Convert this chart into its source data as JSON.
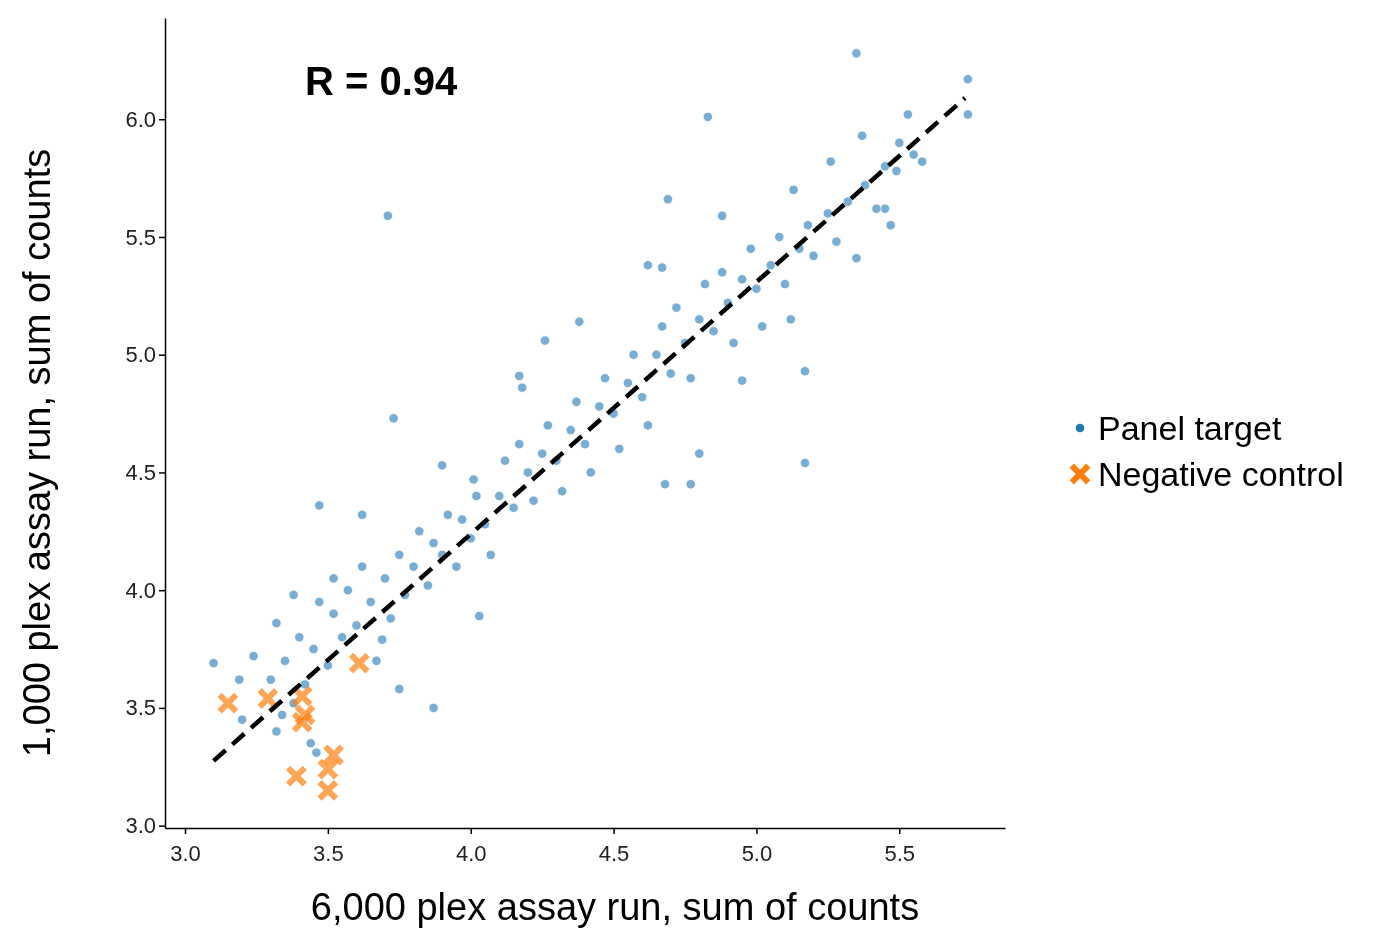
{
  "chart_data": {
    "type": "scatter",
    "xlabel": "6,000 plex assay run, sum of counts",
    "ylabel": "1,000 plex assay run, sum of counts",
    "annotations": [
      "R = 0.94"
    ],
    "xlim": [
      2.93,
      5.87
    ],
    "ylim": [
      2.99,
      6.43
    ],
    "xticks": [
      {
        "value": 3,
        "label": "3.0"
      },
      {
        "value": 3.5,
        "label": "3.5"
      },
      {
        "value": 4,
        "label": "4.0"
      },
      {
        "value": 4.5,
        "label": "4.5"
      },
      {
        "value": 5,
        "label": "5.0"
      },
      {
        "value": 5.5,
        "label": "5.5"
      }
    ],
    "yticks": [
      {
        "value": 3,
        "label": "3.0"
      },
      {
        "value": 3.5,
        "label": "3.5"
      },
      {
        "value": 4,
        "label": "4.0"
      },
      {
        "value": 4.5,
        "label": "4.5"
      },
      {
        "value": 5,
        "label": "5.0"
      },
      {
        "value": 5.5,
        "label": "5.5"
      },
      {
        "value": 6,
        "label": "6.0"
      }
    ],
    "grid": false,
    "legend": "right",
    "series": [
      {
        "name": "Panel target",
        "color": "#1f77b4",
        "marker": "circle",
        "x": [
          5.35,
          4.83,
          3.71,
          4.69,
          3.73,
          5.17,
          5.17,
          5.74,
          5.74,
          5.37,
          5.58,
          3.47,
          3.1,
          3.87,
          4.03,
          4.8,
          4.77,
          4.68,
          4.38,
          4.26,
          4.62,
          4.67,
          4.88,
          4.95,
          5.35,
          5.47,
          5.45,
          5.13,
          5.49,
          5.53,
          5.26,
          4.17,
          4.18,
          4.01,
          3.9,
          3.62,
          3.19,
          3.24,
          3.32,
          3.38,
          3.52,
          3.44,
          3.46,
          3.34,
          3.2,
          3.75,
          3.69,
          3.3,
          3.32,
          3.35,
          3.38,
          3.4,
          3.42,
          3.45,
          3.47,
          3.5,
          3.52,
          3.55,
          3.57,
          3.6,
          3.62,
          3.65,
          3.67,
          3.7,
          3.72,
          3.75,
          3.77,
          3.8,
          3.82,
          3.85,
          3.87,
          3.9,
          3.92,
          3.95,
          3.97,
          4.0,
          4.02,
          4.05,
          4.07,
          4.1,
          4.12,
          4.15,
          4.17,
          4.2,
          4.22,
          4.25,
          4.27,
          4.3,
          4.32,
          4.35,
          4.37,
          4.4,
          4.42,
          4.45,
          4.47,
          4.5,
          4.52,
          4.55,
          4.57,
          4.6,
          4.62,
          4.65,
          4.67,
          4.7,
          4.72,
          4.75,
          4.77,
          4.8,
          4.82,
          4.85,
          4.88,
          4.9,
          4.92,
          4.95,
          4.98,
          5.0,
          5.02,
          5.05,
          5.08,
          5.1,
          5.12,
          5.15,
          5.18,
          5.2,
          5.25,
          5.28,
          5.32,
          5.38,
          5.42,
          5.45,
          5.5,
          5.55
        ],
        "values": [
          6.28,
          6.01,
          5.59,
          5.66,
          4.73,
          4.54,
          4.93,
          6.17,
          6.02,
          5.93,
          5.82,
          4.36,
          3.69,
          3.5,
          3.89,
          4.58,
          4.45,
          4.45,
          5.14,
          5.06,
          5.38,
          5.37,
          5.59,
          4.89,
          5.41,
          5.55,
          5.62,
          5.7,
          5.78,
          6.02,
          5.82,
          4.91,
          4.86,
          4.47,
          4.53,
          4.32,
          3.62,
          3.72,
          3.86,
          3.98,
          4.05,
          3.35,
          3.31,
          3.47,
          3.45,
          3.58,
          3.79,
          3.62,
          3.4,
          3.7,
          3.52,
          3.8,
          3.6,
          3.75,
          3.95,
          3.68,
          3.9,
          3.8,
          4.0,
          3.85,
          4.1,
          3.95,
          3.7,
          4.05,
          3.88,
          4.15,
          3.98,
          4.1,
          4.25,
          4.02,
          4.2,
          4.15,
          4.32,
          4.1,
          4.3,
          4.22,
          4.4,
          4.28,
          4.15,
          4.4,
          4.55,
          4.35,
          4.62,
          4.5,
          4.38,
          4.58,
          4.7,
          4.55,
          4.42,
          4.68,
          4.8,
          4.62,
          4.5,
          4.78,
          4.9,
          4.75,
          4.6,
          4.88,
          5.0,
          4.82,
          4.7,
          5.0,
          5.12,
          4.92,
          5.2,
          5.05,
          4.9,
          5.15,
          5.3,
          5.1,
          5.35,
          5.22,
          5.05,
          5.32,
          5.45,
          5.28,
          5.12,
          5.38,
          5.5,
          5.3,
          5.15,
          5.45,
          5.55,
          5.42,
          5.6,
          5.48,
          5.65,
          5.72,
          5.62,
          5.8,
          5.9,
          5.85
        ]
      },
      {
        "name": "Negative control",
        "color": "#ff7f0e",
        "marker": "cross",
        "x": [
          3.15,
          3.29,
          3.41,
          3.42,
          3.41,
          3.61,
          3.39,
          3.52,
          3.5,
          3.5
        ],
        "values": [
          3.52,
          3.54,
          3.55,
          3.47,
          3.44,
          3.69,
          3.21,
          3.3,
          3.24,
          3.15
        ]
      },
      {
        "type": "line",
        "color": "#000000",
        "line_style": "dashed",
        "x": [
          3.1,
          5.73
        ],
        "values": [
          3.275,
          6.09
        ]
      }
    ]
  }
}
